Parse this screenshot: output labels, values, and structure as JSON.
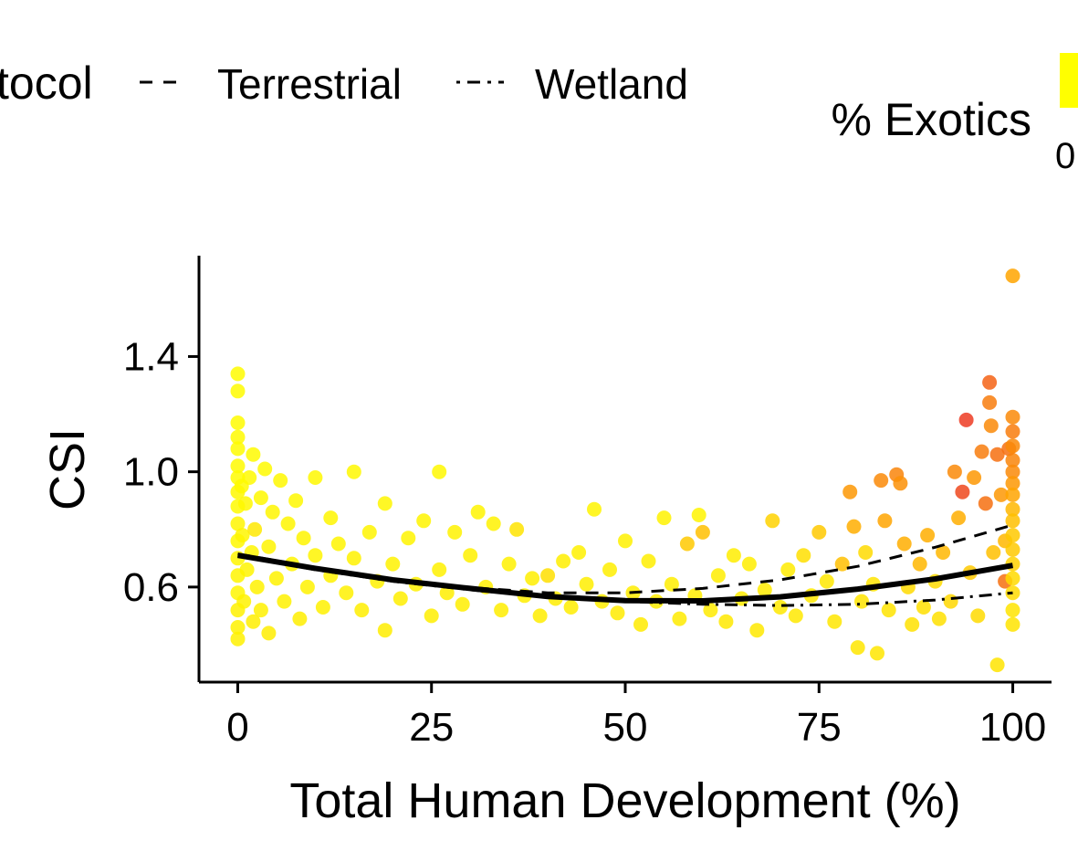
{
  "legend": {
    "protocol_title_visible": "tocol",
    "linetypes": [
      {
        "label": "Terrestrial",
        "dash": "dashed"
      },
      {
        "label": "Wetland",
        "dash": "dotdash"
      }
    ],
    "colorbar_title": "% Exotics",
    "colorbar_tick": "0"
  },
  "colors": {
    "low": "#ffff00",
    "mid": "#ffa500",
    "high": "#e8202a",
    "line": "#000000"
  },
  "chart_data": {
    "type": "scatter",
    "xlabel": "Total Human Development (%)",
    "ylabel": "CSI",
    "xlim": [
      -5,
      105
    ],
    "ylim": [
      0.27,
      1.75
    ],
    "x_ticks": [
      0,
      25,
      50,
      75,
      100
    ],
    "x_tick_labels": [
      "0",
      "25",
      "50",
      "75",
      "100"
    ],
    "y_ticks": [
      0.6,
      1.0,
      1.4
    ],
    "y_tick_labels": [
      "0.6",
      "1.0",
      "1.4"
    ],
    "grid": false,
    "color_by": "% Exotics",
    "points": [
      [
        0,
        1.34,
        0.02
      ],
      [
        0,
        1.28,
        0.02
      ],
      [
        0,
        1.17,
        0.02
      ],
      [
        0,
        1.12,
        0.03
      ],
      [
        0,
        1.08,
        0.02
      ],
      [
        0,
        1.02,
        0.03
      ],
      [
        0,
        0.98,
        0.02
      ],
      [
        0,
        0.93,
        0.04
      ],
      [
        0,
        0.88,
        0.03
      ],
      [
        0,
        0.82,
        0.05
      ],
      [
        0,
        0.76,
        0.04
      ],
      [
        0,
        0.7,
        0.05
      ],
      [
        0,
        0.64,
        0.06
      ],
      [
        0,
        0.58,
        0.05
      ],
      [
        0,
        0.52,
        0.08
      ],
      [
        0,
        0.46,
        0.07
      ],
      [
        0,
        0.42,
        0.08
      ],
      [
        0.5,
        0.95,
        0.03
      ],
      [
        0.6,
        0.78,
        0.05
      ],
      [
        0.8,
        0.55,
        0.07
      ],
      [
        1,
        0.89,
        0.04
      ],
      [
        1.2,
        0.66,
        0.06
      ],
      [
        1.5,
        0.98,
        0.03
      ],
      [
        1.8,
        0.72,
        0.05
      ],
      [
        2,
        1.06,
        0.03
      ],
      [
        2,
        0.48,
        0.09
      ],
      [
        2.2,
        0.8,
        0.12
      ],
      [
        2.5,
        0.6,
        0.07
      ],
      [
        3,
        0.91,
        0.04
      ],
      [
        3,
        0.52,
        0.08
      ],
      [
        3.5,
        1.01,
        0.03
      ],
      [
        4,
        0.74,
        0.06
      ],
      [
        4,
        0.44,
        0.1
      ],
      [
        4.5,
        0.86,
        0.05
      ],
      [
        5,
        0.63,
        0.07
      ],
      [
        5.5,
        0.97,
        0.04
      ],
      [
        6,
        0.55,
        0.08
      ],
      [
        6.5,
        0.82,
        0.05
      ],
      [
        7,
        0.68,
        0.06
      ],
      [
        7.5,
        0.9,
        0.04
      ],
      [
        8,
        0.49,
        0.09
      ],
      [
        8.5,
        0.77,
        0.06
      ],
      [
        9,
        0.6,
        0.07
      ],
      [
        10,
        0.98,
        0.04
      ],
      [
        10,
        0.71,
        0.06
      ],
      [
        11,
        0.53,
        0.08
      ],
      [
        12,
        0.84,
        0.05
      ],
      [
        12,
        0.64,
        0.07
      ],
      [
        13,
        0.75,
        0.06
      ],
      [
        14,
        0.58,
        0.08
      ],
      [
        15,
        1.0,
        0.04
      ],
      [
        15,
        0.7,
        0.07
      ],
      [
        16,
        0.52,
        0.09
      ],
      [
        17,
        0.79,
        0.06
      ],
      [
        18,
        0.62,
        0.08
      ],
      [
        19,
        0.89,
        0.05
      ],
      [
        19,
        0.45,
        0.1
      ],
      [
        20,
        0.68,
        0.07
      ],
      [
        21,
        0.56,
        0.09
      ],
      [
        22,
        0.77,
        0.06
      ],
      [
        23,
        0.61,
        0.08
      ],
      [
        24,
        0.83,
        0.06
      ],
      [
        25,
        0.5,
        0.09
      ],
      [
        26,
        1.0,
        0.04
      ],
      [
        26,
        0.66,
        0.08
      ],
      [
        27,
        0.58,
        0.09
      ],
      [
        28,
        0.79,
        0.07
      ],
      [
        29,
        0.54,
        0.09
      ],
      [
        30,
        0.71,
        0.08
      ],
      [
        31,
        0.86,
        0.06
      ],
      [
        32,
        0.6,
        0.09
      ],
      [
        33,
        0.82,
        0.07
      ],
      [
        34,
        0.52,
        0.1
      ],
      [
        35,
        0.68,
        0.08
      ],
      [
        36,
        0.8,
        0.15
      ],
      [
        37,
        0.57,
        0.09
      ],
      [
        38,
        0.63,
        0.09
      ],
      [
        39,
        0.5,
        0.1
      ],
      [
        40,
        0.64,
        0.18
      ],
      [
        41,
        0.56,
        0.1
      ],
      [
        42,
        0.69,
        0.09
      ],
      [
        43,
        0.53,
        0.1
      ],
      [
        44,
        0.72,
        0.08
      ],
      [
        45,
        0.61,
        0.09
      ],
      [
        46,
        0.87,
        0.06
      ],
      [
        47,
        0.55,
        0.1
      ],
      [
        48,
        0.66,
        0.09
      ],
      [
        49,
        0.51,
        0.11
      ],
      [
        50,
        0.76,
        0.08
      ],
      [
        51,
        0.58,
        0.1
      ],
      [
        52,
        0.47,
        0.11
      ],
      [
        53,
        0.69,
        0.09
      ],
      [
        54,
        0.55,
        0.1
      ],
      [
        55,
        0.84,
        0.07
      ],
      [
        56,
        0.61,
        0.1
      ],
      [
        57,
        0.49,
        0.11
      ],
      [
        58,
        0.75,
        0.3
      ],
      [
        59,
        0.57,
        0.1
      ],
      [
        59.5,
        0.85,
        0.06
      ],
      [
        60,
        0.79,
        0.35
      ],
      [
        61,
        0.52,
        0.11
      ],
      [
        62,
        0.64,
        0.1
      ],
      [
        63,
        0.48,
        0.12
      ],
      [
        64,
        0.71,
        0.1
      ],
      [
        65,
        0.56,
        0.11
      ],
      [
        66,
        0.68,
        0.1
      ],
      [
        67,
        0.45,
        0.12
      ],
      [
        68,
        0.59,
        0.11
      ],
      [
        69,
        0.83,
        0.25
      ],
      [
        70,
        0.53,
        0.12
      ],
      [
        71,
        0.66,
        0.11
      ],
      [
        72,
        0.5,
        0.12
      ],
      [
        73,
        0.71,
        0.18
      ],
      [
        74,
        0.57,
        0.12
      ],
      [
        75,
        0.79,
        0.3
      ],
      [
        76,
        0.62,
        0.13
      ],
      [
        77,
        0.48,
        0.14
      ],
      [
        78,
        0.68,
        0.35
      ],
      [
        79,
        0.93,
        0.55
      ],
      [
        79.5,
        0.81,
        0.45
      ],
      [
        80,
        0.39,
        0.14
      ],
      [
        80.5,
        0.55,
        0.15
      ],
      [
        81,
        0.72,
        0.2
      ],
      [
        82,
        0.61,
        0.15
      ],
      [
        82.5,
        0.37,
        0.14
      ],
      [
        83,
        0.97,
        0.6
      ],
      [
        83.5,
        0.83,
        0.5
      ],
      [
        84,
        0.52,
        0.15
      ],
      [
        85,
        0.99,
        0.62
      ],
      [
        85.5,
        0.96,
        0.58
      ],
      [
        86,
        0.75,
        0.45
      ],
      [
        86.5,
        0.6,
        0.2
      ],
      [
        87,
        0.47,
        0.16
      ],
      [
        88,
        0.68,
        0.4
      ],
      [
        88.5,
        0.53,
        0.18
      ],
      [
        89,
        0.78,
        0.45
      ],
      [
        90,
        0.62,
        0.2
      ],
      [
        90.5,
        0.49,
        0.17
      ],
      [
        91,
        0.72,
        0.4
      ],
      [
        92,
        0.55,
        0.22
      ],
      [
        92.5,
        1.0,
        0.6
      ],
      [
        93,
        0.84,
        0.45
      ],
      [
        93.5,
        0.93,
        0.85
      ],
      [
        94,
        1.18,
        0.9
      ],
      [
        94.5,
        0.65,
        0.3
      ],
      [
        95,
        0.98,
        0.55
      ],
      [
        95.5,
        0.5,
        0.2
      ],
      [
        96,
        1.07,
        0.65
      ],
      [
        96.5,
        0.89,
        0.7
      ],
      [
        97,
        1.31,
        0.75
      ],
      [
        97,
        1.24,
        0.65
      ],
      [
        97.2,
        1.16,
        0.6
      ],
      [
        97.5,
        0.72,
        0.35
      ],
      [
        98,
        1.06,
        0.7
      ],
      [
        98,
        0.33,
        0.15
      ],
      [
        98.5,
        0.92,
        0.55
      ],
      [
        99,
        0.62,
        0.7
      ],
      [
        99,
        0.76,
        0.4
      ],
      [
        99.5,
        1.08,
        0.7
      ],
      [
        100,
        1.68,
        0.5
      ],
      [
        100,
        1.19,
        0.6
      ],
      [
        100,
        1.14,
        0.65
      ],
      [
        100,
        1.09,
        0.6
      ],
      [
        100,
        1.04,
        0.62
      ],
      [
        100,
        1.0,
        0.6
      ],
      [
        100,
        0.96,
        0.55
      ],
      [
        100,
        0.92,
        0.5
      ],
      [
        100,
        0.87,
        0.4
      ],
      [
        100,
        0.83,
        0.35
      ],
      [
        100,
        0.78,
        0.3
      ],
      [
        100,
        0.73,
        0.3
      ],
      [
        100,
        0.68,
        0.25
      ],
      [
        100,
        0.63,
        0.2
      ],
      [
        100,
        0.58,
        0.2
      ],
      [
        100,
        0.52,
        0.15
      ],
      [
        100,
        0.47,
        0.15
      ]
    ],
    "series": [
      {
        "style": "solid",
        "x": [
          0,
          10,
          20,
          30,
          40,
          50,
          60,
          70,
          80,
          90,
          100
        ],
        "y": [
          0.71,
          0.665,
          0.625,
          0.595,
          0.567,
          0.553,
          0.552,
          0.566,
          0.593,
          0.628,
          0.675
        ]
      },
      {
        "style": "dashed",
        "x": [
          0,
          10,
          20,
          30,
          40,
          50,
          60,
          70,
          80,
          90,
          100
        ],
        "y": [
          0.715,
          0.668,
          0.628,
          0.598,
          0.58,
          0.58,
          0.595,
          0.625,
          0.672,
          0.738,
          0.815
        ]
      },
      {
        "style": "dotdash",
        "x": [
          0,
          10,
          20,
          30,
          40,
          50,
          60,
          70,
          80,
          90,
          100
        ],
        "y": [
          0.71,
          0.66,
          0.62,
          0.59,
          0.565,
          0.55,
          0.54,
          0.536,
          0.54,
          0.555,
          0.58
        ]
      }
    ]
  }
}
